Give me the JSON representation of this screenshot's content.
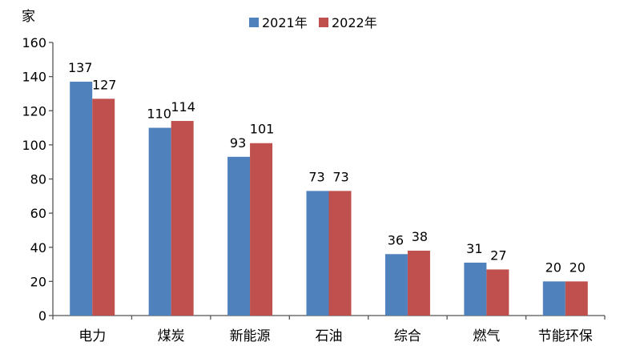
{
  "chart_data": {
    "type": "bar",
    "title": "",
    "ylabel": "家",
    "xlabel": "",
    "categories": [
      "电力",
      "煤炭",
      "新能源",
      "石油",
      "综合",
      "燃气",
      "节能环保"
    ],
    "series": [
      {
        "name": "2021年",
        "color": "#4f81bd",
        "values": [
          137,
          110,
          93,
          73,
          36,
          31,
          20
        ]
      },
      {
        "name": "2022年",
        "color": "#c0504d",
        "values": [
          127,
          114,
          101,
          73,
          38,
          27,
          20
        ]
      }
    ],
    "ylim": [
      0,
      160
    ],
    "yticks": [
      0,
      20,
      40,
      60,
      80,
      100,
      120,
      140,
      160
    ],
    "grid": false,
    "legend_position": "top-center"
  }
}
